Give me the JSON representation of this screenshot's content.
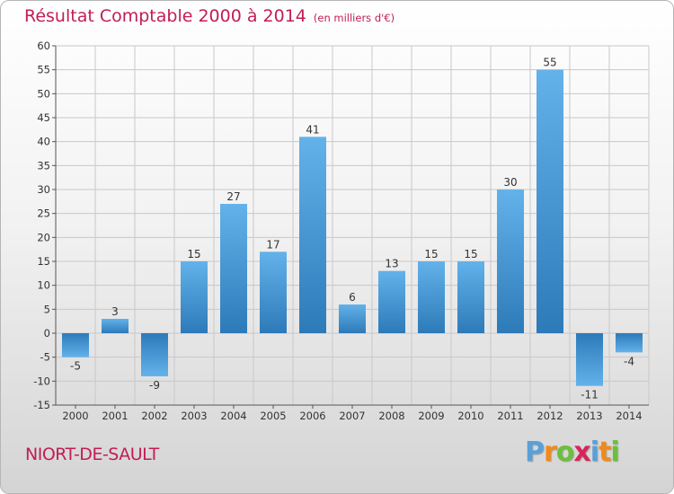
{
  "title": "Résultat Comptable 2000 à 2014",
  "subtitle": "(en milliers d'€)",
  "commune": "NIORT-DE-SAULT",
  "logo": {
    "letters": [
      "P",
      "r",
      "o",
      "x",
      "i",
      "t",
      "i"
    ],
    "colors": [
      "#5aa0d8",
      "#f08a1c",
      "#6cbf3c",
      "#d8245a",
      "#5aa0d8",
      "#f08a1c",
      "#6cbf3c"
    ]
  },
  "colors": {
    "title": "#c21d54",
    "bar_light": "#63b2ea",
    "bar_dark": "#2d7ab9",
    "grid": "#c8c8c8",
    "axis": "#555555",
    "label": "#333333"
  },
  "chart_data": {
    "type": "bar",
    "title": "Résultat Comptable 2000 à 2014",
    "subtitle": "(en milliers d'€)",
    "xlabel": "",
    "ylabel": "",
    "categories": [
      "2000",
      "2001",
      "2002",
      "2003",
      "2004",
      "2005",
      "2006",
      "2007",
      "2008",
      "2009",
      "2010",
      "2011",
      "2012",
      "2013",
      "2014"
    ],
    "values": [
      -5,
      3,
      -9,
      15,
      27,
      17,
      41,
      6,
      13,
      15,
      15,
      30,
      55,
      -11,
      -4
    ],
    "ylim": [
      -15,
      60
    ],
    "yticks": [
      -15,
      -10,
      -5,
      0,
      5,
      10,
      15,
      20,
      25,
      30,
      35,
      40,
      45,
      50,
      55,
      60
    ],
    "grid": true,
    "legend": "none"
  }
}
